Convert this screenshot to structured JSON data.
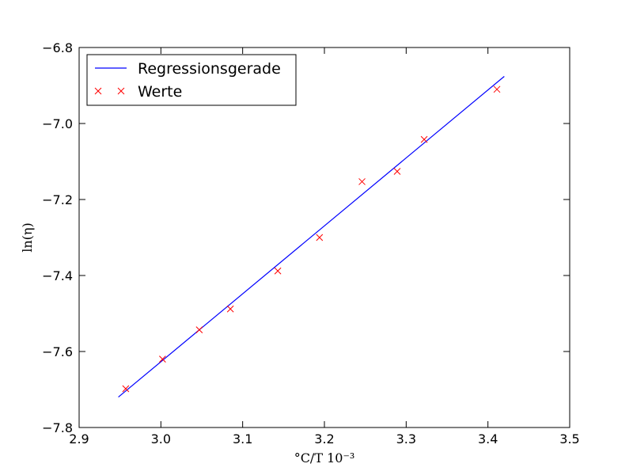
{
  "chart_data": {
    "type": "scatter",
    "title": "",
    "xlabel": "°C/T 10⁻³",
    "ylabel": "ln(η)",
    "xlim": [
      2.9,
      3.5
    ],
    "ylim": [
      -7.8,
      -6.8
    ],
    "xticks": [
      2.9,
      3.0,
      3.1,
      3.2,
      3.3,
      3.4,
      3.5
    ],
    "yticks": [
      -7.8,
      -7.6,
      -7.4,
      -7.2,
      -7.0,
      -6.8
    ],
    "xtick_labels": [
      "2.9",
      "3.0",
      "3.1",
      "3.2",
      "3.3",
      "3.4",
      "3.5"
    ],
    "ytick_labels": [
      "−7.8",
      "−7.6",
      "−7.4",
      "−7.2",
      "−7.0",
      "−6.8"
    ],
    "grid": false,
    "legend_position": "top-left",
    "series": [
      {
        "name": "Regressionsgerade",
        "kind": "line",
        "color": "#0000ff",
        "x": [
          2.948,
          3.42
        ],
        "y": [
          -7.72,
          -6.876
        ]
      },
      {
        "name": "Werte",
        "kind": "marker",
        "marker": "x",
        "color": "#ff0000",
        "x": [
          2.957,
          3.002,
          3.047,
          3.085,
          3.143,
          3.194,
          3.246,
          3.289,
          3.322,
          3.411
        ],
        "y": [
          -7.698,
          -7.62,
          -7.543,
          -7.488,
          -7.388,
          -7.3,
          -7.153,
          -7.126,
          -7.042,
          -6.91
        ]
      }
    ]
  }
}
